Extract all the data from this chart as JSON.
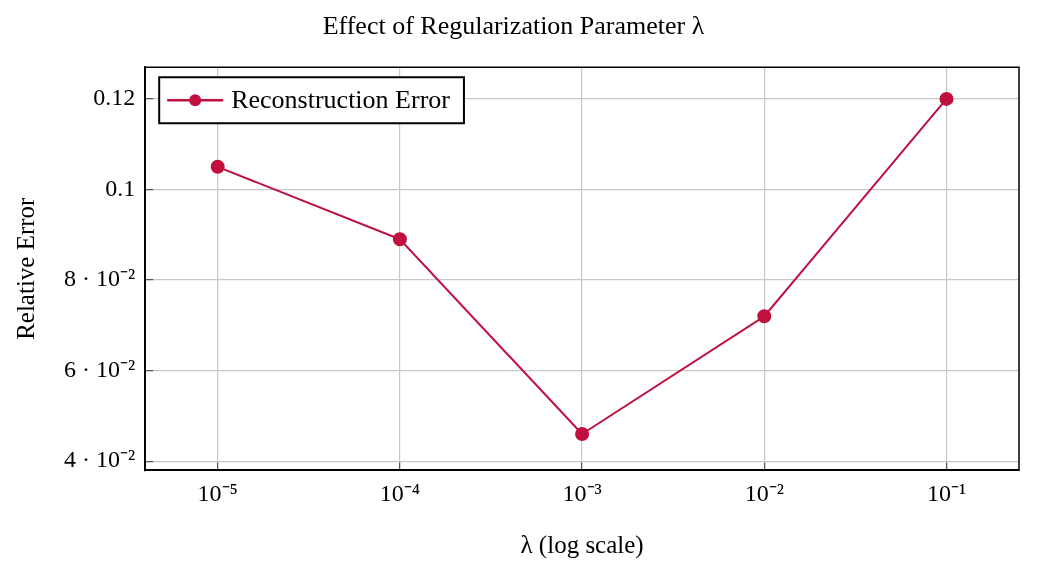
{
  "chart_data": {
    "type": "line",
    "title": "Effect of Regularization Parameter λ",
    "xlabel": "λ (log scale)",
    "ylabel": "Relative Error",
    "x": [
      1e-05,
      0.0001,
      0.001,
      0.01,
      0.1
    ],
    "series": [
      {
        "name": "Reconstruction Error",
        "color": "#c0103f",
        "values": [
          0.105,
          0.089,
          0.046,
          0.072,
          0.12
        ]
      }
    ],
    "log": "x",
    "xlim": [
      4e-06,
      0.25
    ],
    "xticks": [
      {
        "value": 1e-05,
        "label": "10⁻⁵"
      },
      {
        "value": 0.0001,
        "label": "10⁻⁴"
      },
      {
        "value": 0.001,
        "label": "10⁻³"
      },
      {
        "value": 0.01,
        "label": "10⁻²"
      },
      {
        "value": 0.1,
        "label": "10⁻¹"
      }
    ],
    "ylim": [
      0.038,
      0.127
    ],
    "yticks": [
      {
        "value": 0.04,
        "label": "4 · 10⁻²"
      },
      {
        "value": 0.06,
        "label": "6 · 10⁻²"
      },
      {
        "value": 0.08,
        "label": "8 · 10⁻²"
      },
      0.1,
      0.12
    ],
    "grid": true,
    "legend": "top left",
    "marker": "circle",
    "line_style": "solid"
  }
}
